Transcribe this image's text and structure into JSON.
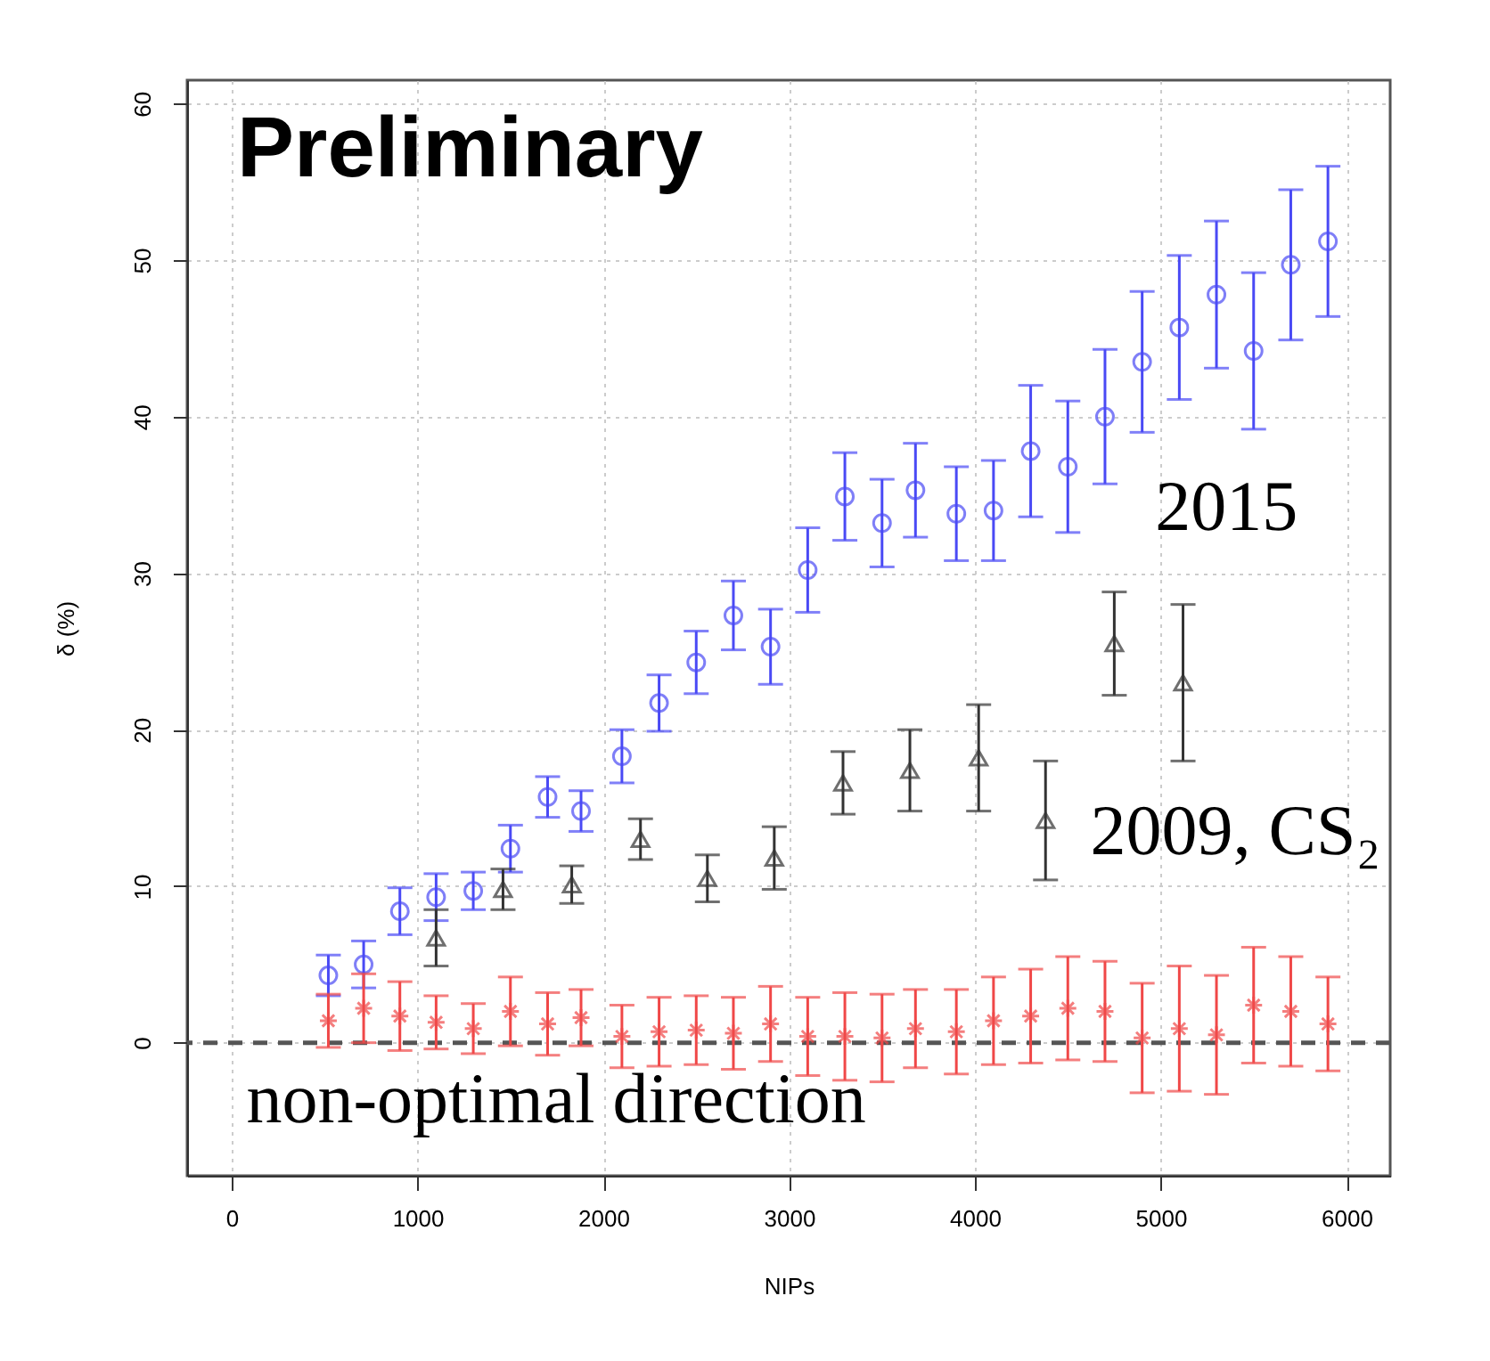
{
  "chart_data": {
    "type": "scatter",
    "xlabel": "NIPs",
    "ylabel": "δ (%)",
    "annotations": [
      "Preliminary"
    ],
    "xlim": [
      -240,
      6235
    ],
    "xticks": [
      0,
      1000,
      2000,
      3000,
      4000,
      5000,
      6000
    ],
    "ylim": [
      -8.5,
      61.5
    ],
    "yticks": [
      0,
      10,
      20,
      30,
      40,
      50,
      60
    ],
    "grid": true,
    "ref_lines": [
      {
        "axis": "y",
        "value": 0,
        "color": "#555555",
        "line_style": "dashed"
      }
    ],
    "series": [
      {
        "name": "2015",
        "color": "#4a4af5",
        "marker": "circle",
        "x": [
          520,
          710,
          905,
          1100,
          1300,
          1500,
          1700,
          1880,
          2100,
          2300,
          2500,
          2700,
          2900,
          3100,
          3300,
          3500,
          3680,
          3900,
          4100,
          4300,
          4500,
          4700,
          4900,
          5100,
          5300,
          5500,
          5700,
          5900
        ],
        "values": [
          4.3,
          5,
          8.4,
          9.3,
          9.7,
          12.4,
          15.7,
          14.8,
          18.3,
          21.7,
          24.3,
          27.3,
          25.3,
          30.2,
          34.9,
          33.2,
          35.3,
          33.8,
          34,
          37.8,
          36.8,
          40,
          43.5,
          45.7,
          47.8,
          44.2,
          49.7,
          51.2
        ],
        "errors": [
          1.3,
          1.5,
          1.5,
          1.5,
          1.2,
          1.5,
          1.3,
          1.3,
          1.7,
          1.8,
          2,
          2.2,
          2.4,
          2.7,
          2.8,
          2.8,
          3,
          3,
          3.2,
          4.2,
          4.2,
          4.3,
          4.5,
          4.6,
          4.7,
          5,
          4.8,
          4.8
        ]
      },
      {
        "name": "2009, CS₂",
        "color": "#333333",
        "marker": "triangle",
        "x": [
          1100,
          1460,
          1830,
          2200,
          2560,
          2920,
          3290,
          3650,
          4020,
          4380,
          4750,
          5120
        ],
        "values": [
          6.7,
          9.8,
          10.1,
          13,
          10.5,
          11.8,
          16.6,
          17.4,
          18.2,
          14.2,
          25.5,
          23
        ],
        "errors": [
          1.8,
          1.3,
          1.2,
          1.3,
          1.5,
          2,
          2,
          2.6,
          3.4,
          3.8,
          3.3,
          5
        ]
      },
      {
        "name": "non-optimal direction",
        "color": "#f04848",
        "marker": "cross",
        "x": [
          520,
          710,
          905,
          1100,
          1300,
          1500,
          1700,
          1880,
          2100,
          2300,
          2500,
          2700,
          2900,
          3100,
          3300,
          3500,
          3680,
          3900,
          4100,
          4300,
          4500,
          4700,
          4900,
          5100,
          5300,
          5500,
          5700,
          5900
        ],
        "values": [
          1.4,
          2.2,
          1.7,
          1.3,
          0.9,
          2,
          1.2,
          1.6,
          0.4,
          0.7,
          0.8,
          0.6,
          1.2,
          0.4,
          0.4,
          0.3,
          0.9,
          0.7,
          1.4,
          1.7,
          2.2,
          2,
          0.3,
          0.9,
          0.5,
          2.4,
          2,
          1.2
        ],
        "errors": [
          1.7,
          2.2,
          2.2,
          1.7,
          1.6,
          2.2,
          2,
          1.8,
          2,
          2.2,
          2.2,
          2.3,
          2.4,
          2.5,
          2.8,
          2.8,
          2.5,
          2.7,
          2.8,
          3,
          3.3,
          3.2,
          3.5,
          4,
          3.8,
          3.7,
          3.5,
          3
        ]
      }
    ]
  }
}
